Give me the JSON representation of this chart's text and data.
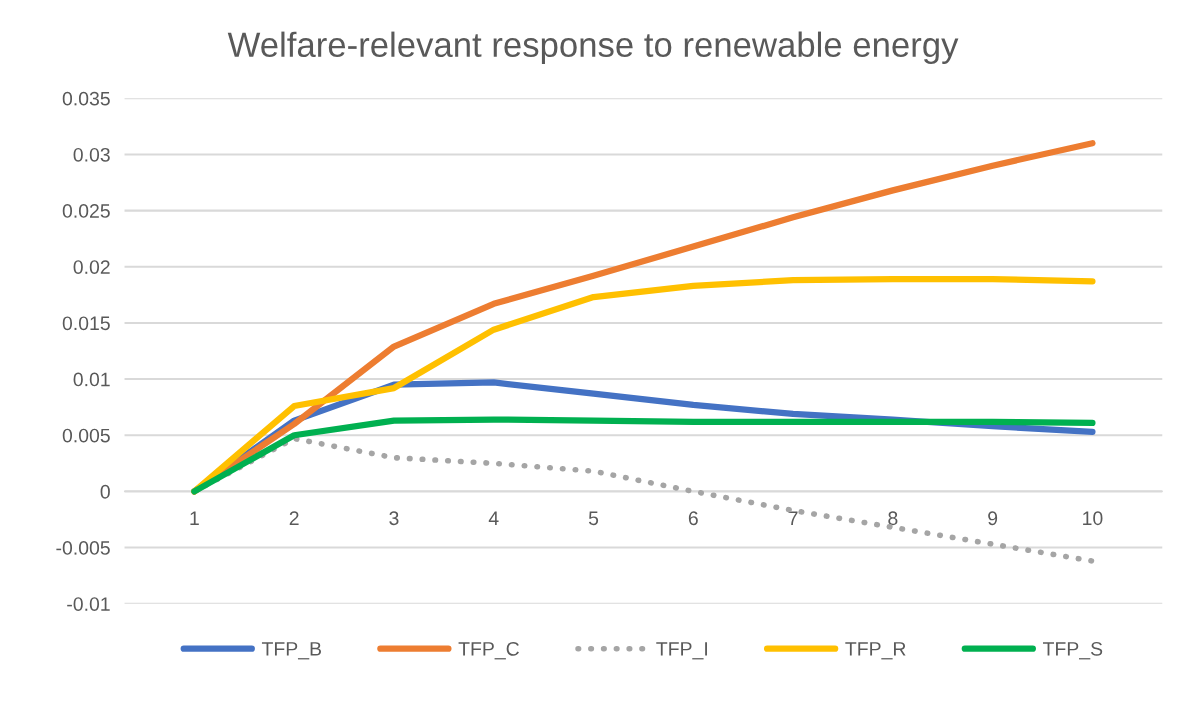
{
  "chart_data": {
    "type": "line",
    "title": "Welfare-relevant response to renewable energy",
    "categories": [
      "1",
      "2",
      "3",
      "4",
      "5",
      "6",
      "7",
      "8",
      "9",
      "10"
    ],
    "series": [
      {
        "name": "TFP_B",
        "color": "#4472c4",
        "values": [
          0,
          0.0063,
          0.0095,
          0.0097,
          0.0087,
          0.0077,
          0.0069,
          0.0064,
          0.0058,
          0.0053
        ]
      },
      {
        "name": "TFP_C",
        "color": "#ed7d31",
        "values": [
          0,
          0.006,
          0.0129,
          0.0167,
          0.0192,
          0.0218,
          0.0244,
          0.0268,
          0.029,
          0.031
        ]
      },
      {
        "name": "TFP_I",
        "color": "#a5a5a5",
        "line_style": "dotted",
        "values": [
          0,
          0.0047,
          0.003,
          0.0025,
          0.0018,
          0.0,
          -0.0017,
          -0.0032,
          -0.0047,
          -0.0062
        ]
      },
      {
        "name": "TFP_R",
        "color": "#ffc000",
        "values": [
          0,
          0.0076,
          0.0092,
          0.0144,
          0.0173,
          0.0183,
          0.0188,
          0.0189,
          0.0189,
          0.0187
        ]
      },
      {
        "name": "TFP_S",
        "color": "#00b050",
        "values": [
          0,
          0.005,
          0.0063,
          0.0064,
          0.0063,
          0.0062,
          0.0062,
          0.0062,
          0.0062,
          0.0061
        ]
      }
    ],
    "ylim": [
      -0.01,
      0.035
    ],
    "yticks": [
      -0.01,
      -0.005,
      0,
      0.005,
      0.01,
      0.015,
      0.02,
      0.025,
      0.03,
      0.035
    ],
    "grid": "y",
    "legend": "bottom",
    "line_style": "solid",
    "marker": "none"
  }
}
